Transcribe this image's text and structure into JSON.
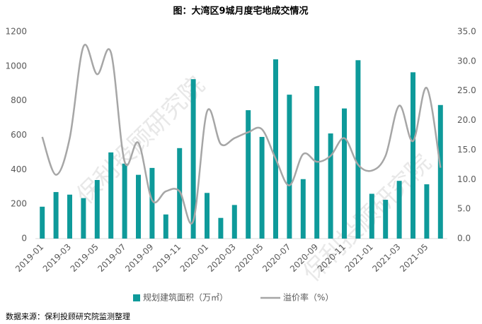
{
  "chart_data": {
    "type": "bar_line",
    "title": "图：大湾区9城月度宅地成交情况",
    "watermark": "保利投顾研究院",
    "source": "数据来源：保利投顾研究院监测整理",
    "categories": [
      "2019-01",
      null,
      "2019-03",
      null,
      "2019-05",
      null,
      "2019-07",
      null,
      "2019-09",
      null,
      "2019-11",
      null,
      "2020-01",
      null,
      "2020-03",
      null,
      "2020-05",
      null,
      "2020-07",
      null,
      "2020-09",
      null,
      "2020-11",
      null,
      "2021-01",
      null,
      "2021-03",
      null,
      "2021-05",
      null
    ],
    "series": [
      {
        "name": "规划建筑面积（万㎡）",
        "color": "#0e9a9a",
        "kind": "bar",
        "values": [
          185,
          270,
          255,
          235,
          340,
          500,
          435,
          370,
          410,
          140,
          525,
          925,
          265,
          120,
          195,
          745,
          590,
          1040,
          835,
          345,
          885,
          610,
          755,
          1035,
          260,
          225,
          335,
          965,
          315,
          775
        ]
      },
      {
        "name": "溢价率（%）",
        "color": "#a6a6a6",
        "kind": "line",
        "axis": "y2",
        "values": [
          17.2,
          10.8,
          17.0,
          32.5,
          27.8,
          31.5,
          13.0,
          16.2,
          6.5,
          8.0,
          8.0,
          3.0,
          21.5,
          16.0,
          17.0,
          18.0,
          18.5,
          13.5,
          9.0,
          14.3,
          13.0,
          14.0,
          17.0,
          12.5,
          11.5,
          14.0,
          22.5,
          16.5,
          25.5,
          12.0
        ]
      }
    ],
    "ylim": [
      0,
      1200
    ],
    "yticks": [
      0,
      200,
      400,
      600,
      800,
      1000,
      1200
    ],
    "y2lim": [
      0,
      35
    ],
    "y2ticks": [
      {
        "value": 0,
        "label": "0.0"
      },
      {
        "value": 5,
        "label": "5.0"
      },
      {
        "value": 10,
        "label": "10.0"
      },
      {
        "value": 15,
        "label": "15.0"
      },
      {
        "value": 20,
        "label": "20.0"
      },
      {
        "value": 25,
        "label": "25.0"
      },
      {
        "value": 30,
        "label": "30.0"
      },
      {
        "value": 35,
        "label": "35.0"
      }
    ],
    "legend": "bottom"
  }
}
